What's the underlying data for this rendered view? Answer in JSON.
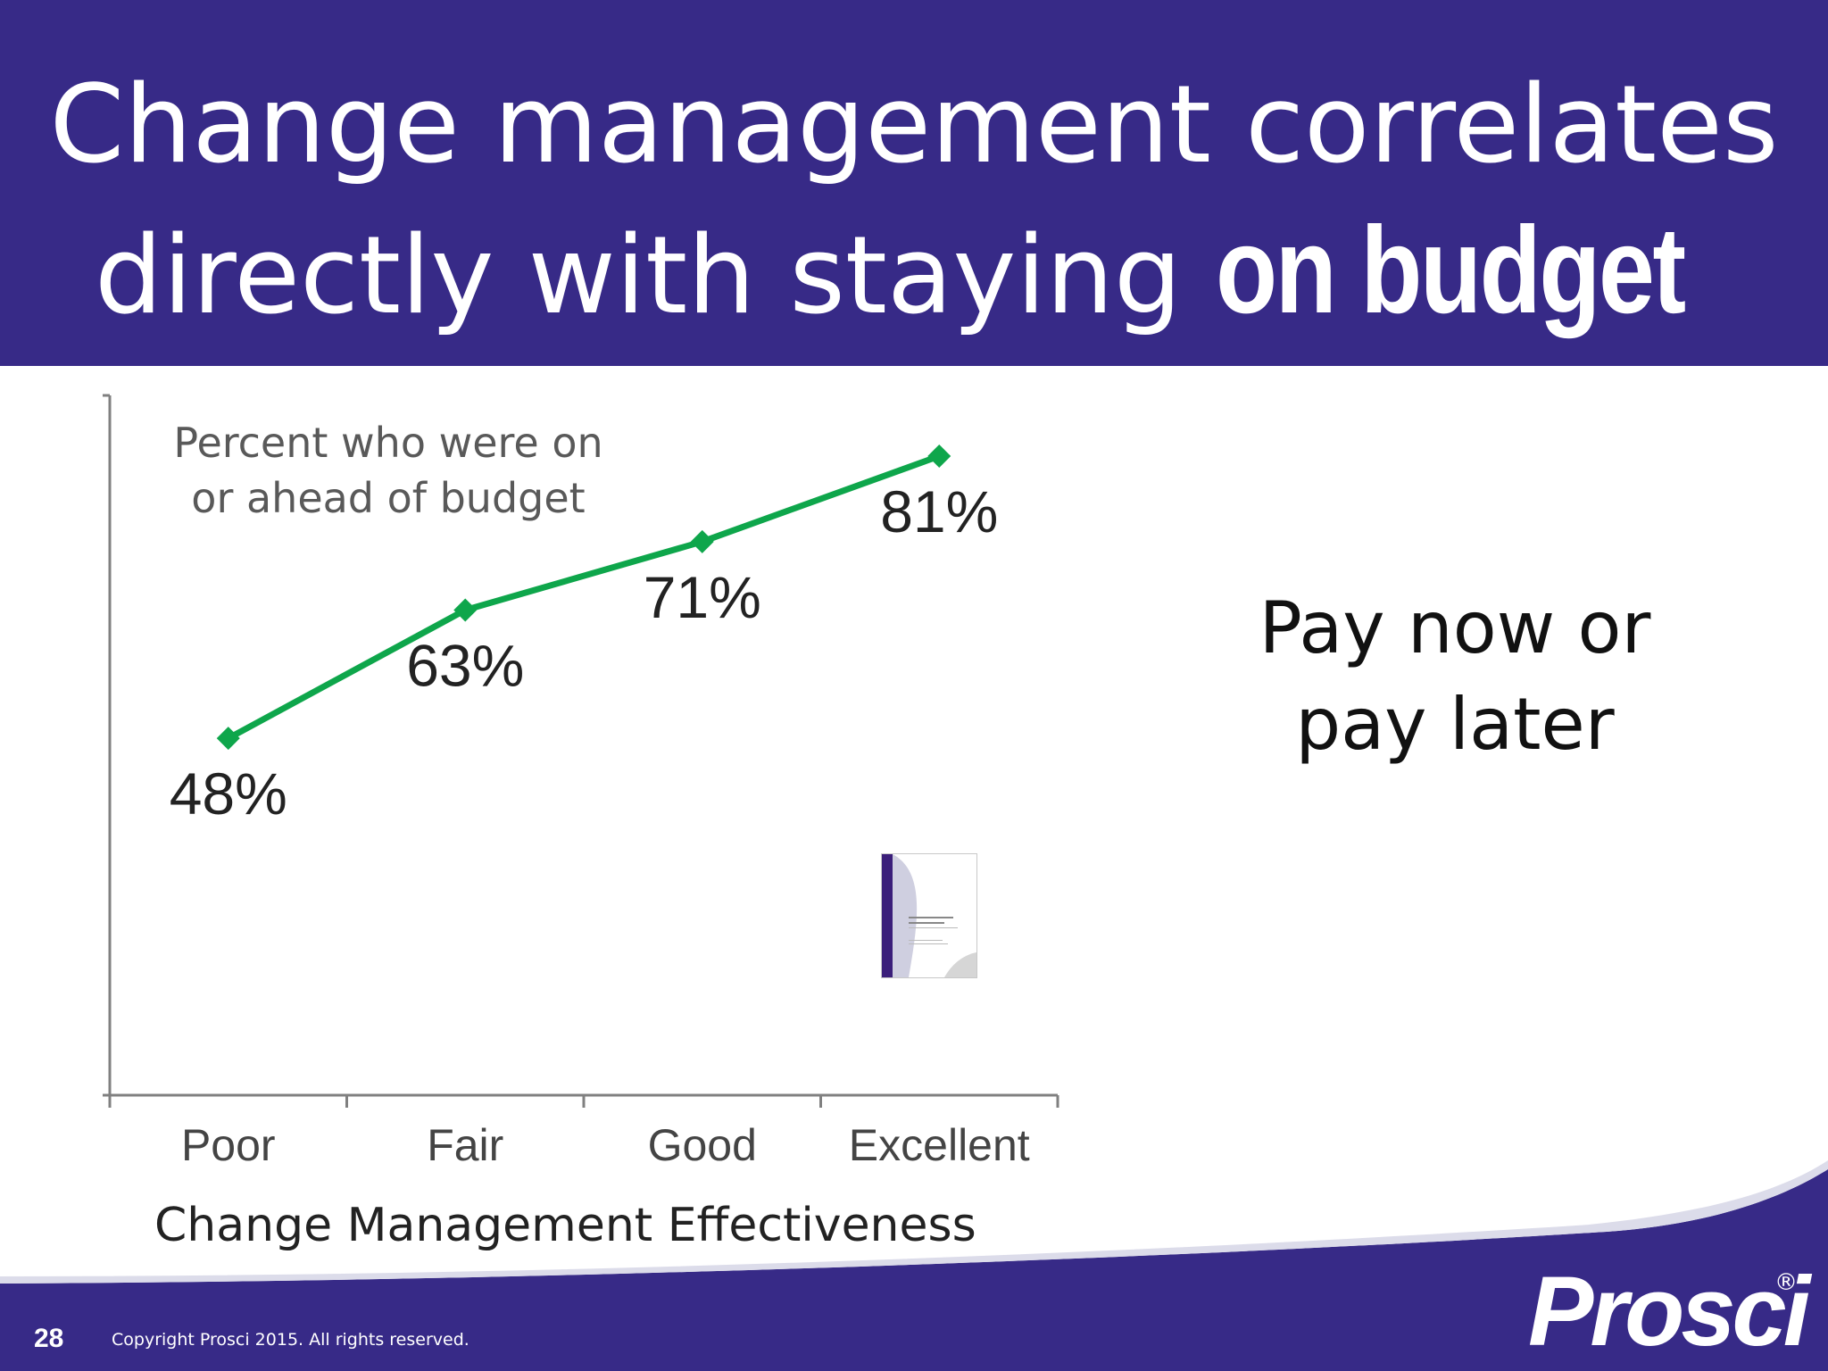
{
  "header": {
    "line1": "Change management correlates",
    "line2_prefix": "directly with staying ",
    "line2_emphasis": "on budget"
  },
  "chart_data": {
    "type": "line",
    "title_line1": "Percent who were on",
    "title_line2": "or ahead of budget",
    "xlabel": "Change Management Effectiveness",
    "ylabel": "",
    "categories": [
      "Poor",
      "Fair",
      "Good",
      "Excellent"
    ],
    "series": [
      {
        "values": [
          48,
          63,
          71,
          81
        ],
        "labels": [
          "48%",
          "63%",
          "71%",
          "81%"
        ],
        "color": "#0ea64b"
      }
    ],
    "ylim": [
      0,
      100
    ],
    "grid": false,
    "legend": "none"
  },
  "side_note": {
    "line1": "Pay now or",
    "line2": "pay later"
  },
  "footer": {
    "page_number": "28",
    "copyright": "Copyright Prosci 2015. All rights reserved.",
    "logo": "Prosci",
    "logo_mark": "®"
  },
  "colors": {
    "brand": "#372a87",
    "series": "#0ea64b",
    "axis": "#808080"
  }
}
